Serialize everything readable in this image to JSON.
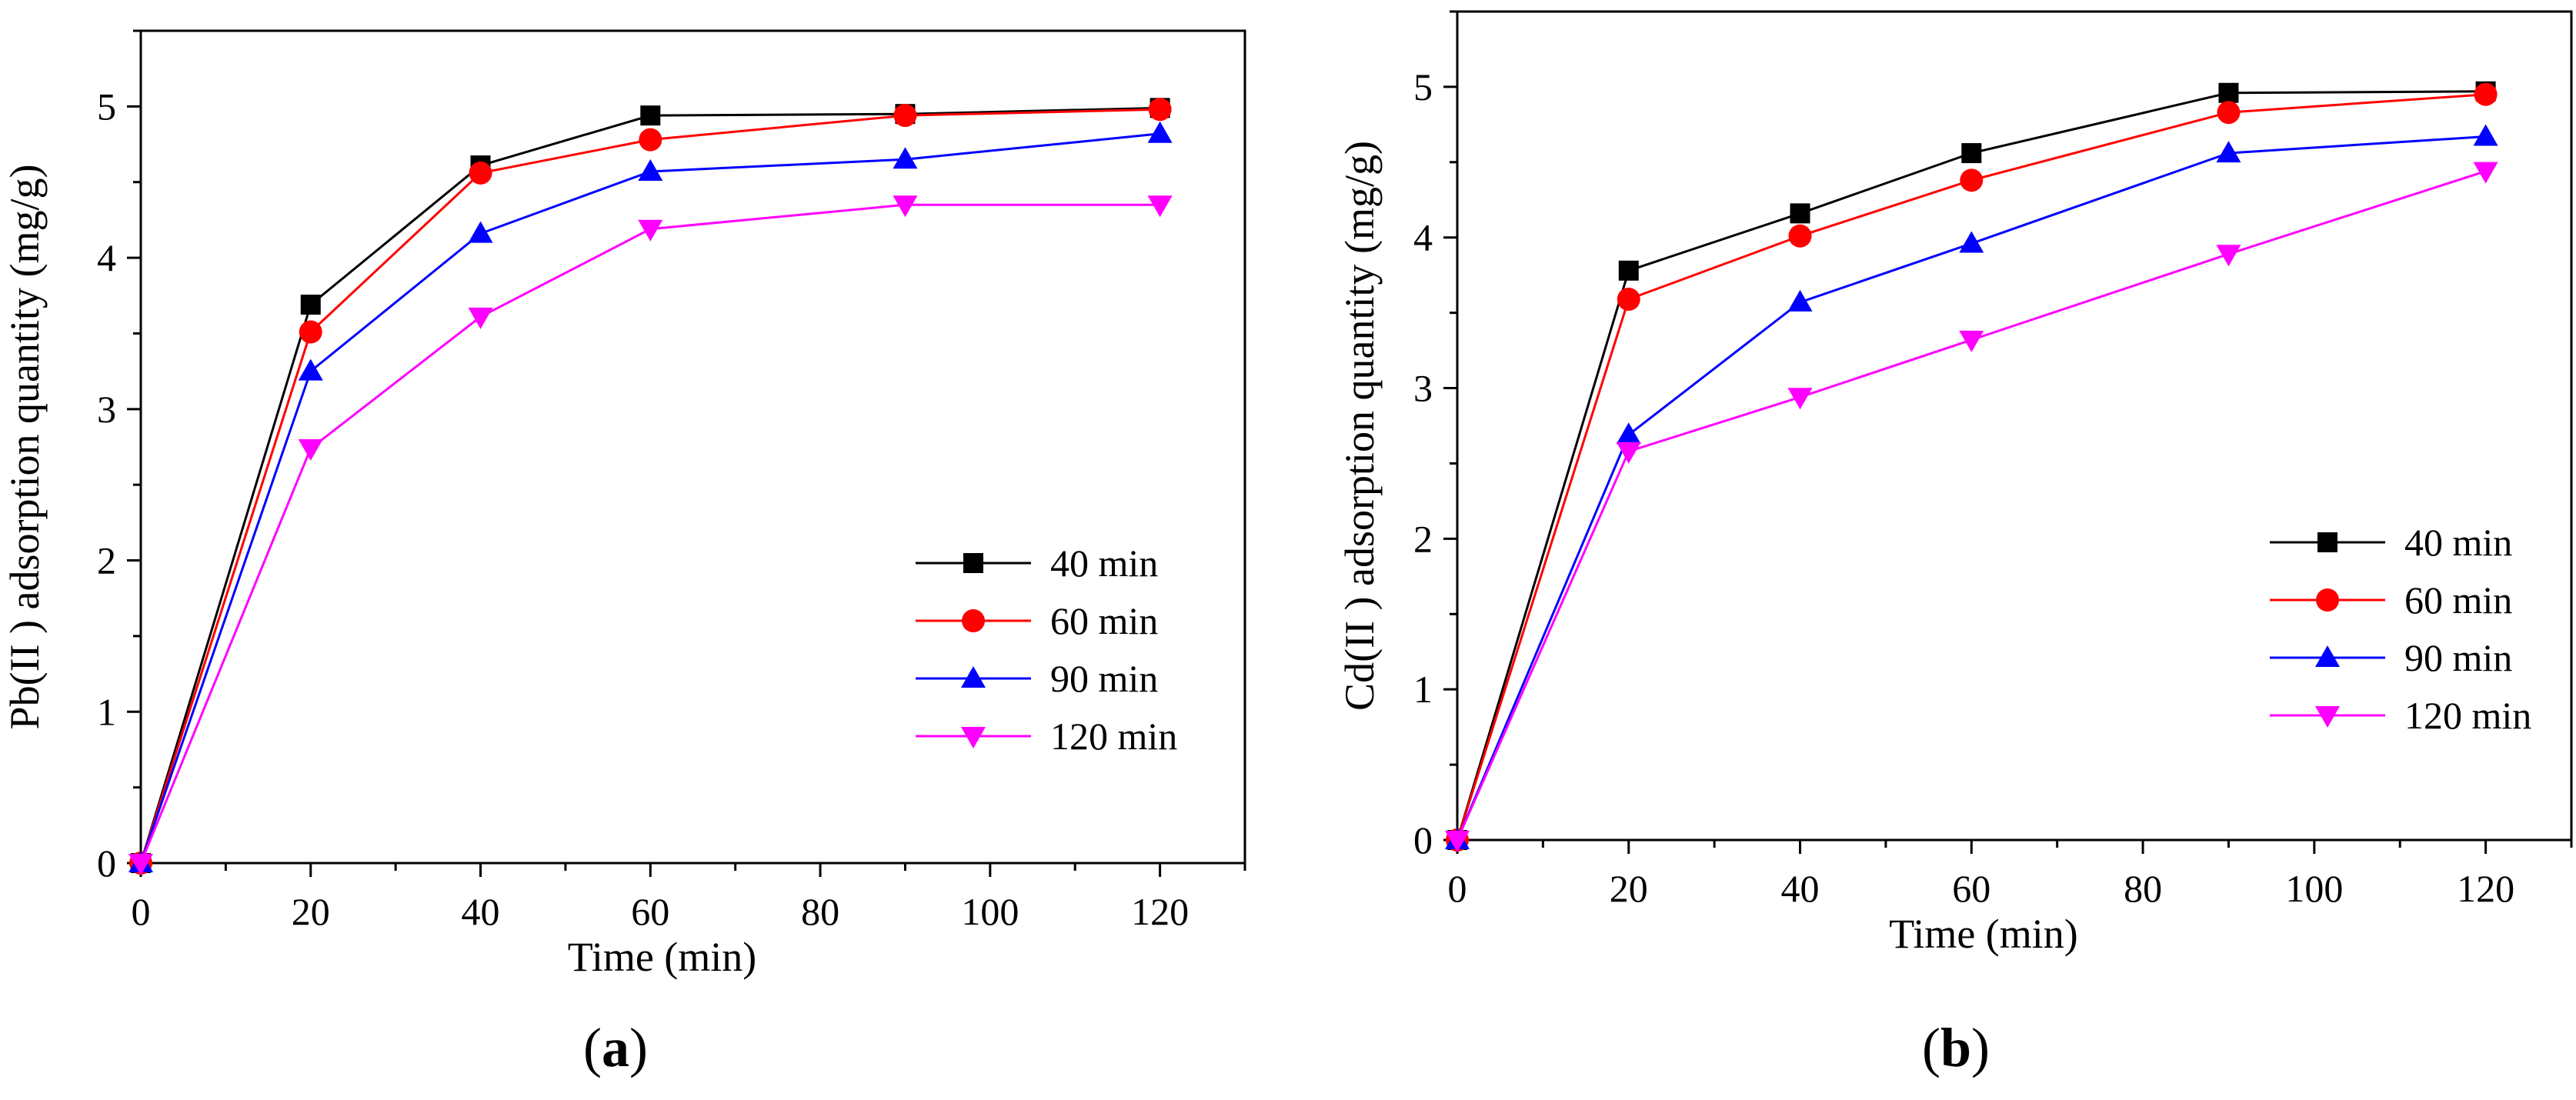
{
  "chart_data": [
    {
      "type": "line",
      "panel_label": "a",
      "xlabel": "Time (min)",
      "ylabel": "Pb(II ) adsorption quantity (mg/g)",
      "xlim": [
        0,
        130
      ],
      "ylim": [
        0,
        5.5
      ],
      "xticks": [
        "0",
        "20",
        "40",
        "60",
        "80",
        "100",
        "120"
      ],
      "yticks": [
        "0",
        "1",
        "2",
        "3",
        "4",
        "5"
      ],
      "grid": false,
      "legend_position": "bottom-right",
      "x": [
        0,
        20,
        40,
        60,
        90,
        120
      ],
      "series": [
        {
          "name": "40 min",
          "color": "#000000",
          "marker": "square",
          "values": [
            0,
            3.69,
            4.61,
            4.94,
            4.95,
            4.99
          ]
        },
        {
          "name": "60 min",
          "color": "#ff0000",
          "marker": "circle",
          "values": [
            0,
            3.51,
            4.56,
            4.78,
            4.94,
            4.98
          ]
        },
        {
          "name": "90 min",
          "color": "#0000ff",
          "marker": "triangle-up",
          "values": [
            0,
            3.25,
            4.16,
            4.57,
            4.65,
            4.82
          ]
        },
        {
          "name": "120 min",
          "color": "#ff00ff",
          "marker": "triangle-down",
          "values": [
            0,
            2.74,
            3.61,
            4.19,
            4.35,
            4.35
          ]
        }
      ]
    },
    {
      "type": "line",
      "panel_label": "b",
      "xlabel": "Time (min)",
      "ylabel": "Cd(II )  adsorption quantity (mg/g)",
      "xlim": [
        0,
        130
      ],
      "ylim": [
        0,
        5.5
      ],
      "xticks": [
        "0",
        "20",
        "40",
        "60",
        "80",
        "100",
        "120"
      ],
      "yticks": [
        "0",
        "1",
        "2",
        "3",
        "4",
        "5"
      ],
      "grid": false,
      "legend_position": "right",
      "x": [
        0,
        20,
        40,
        60,
        90,
        120
      ],
      "series": [
        {
          "name": "40 min",
          "color": "#000000",
          "marker": "square",
          "values": [
            0,
            3.78,
            4.16,
            4.56,
            4.96,
            4.97
          ]
        },
        {
          "name": "60 min",
          "color": "#ff0000",
          "marker": "circle",
          "values": [
            0,
            3.59,
            4.01,
            4.38,
            4.83,
            4.95
          ]
        },
        {
          "name": "90 min",
          "color": "#0000ff",
          "marker": "triangle-up",
          "values": [
            0,
            2.69,
            3.57,
            3.96,
            4.56,
            4.67
          ]
        },
        {
          "name": "120 min",
          "color": "#ff00ff",
          "marker": "triangle-down",
          "values": [
            0,
            2.58,
            2.94,
            3.32,
            3.89,
            4.44
          ]
        }
      ]
    }
  ]
}
